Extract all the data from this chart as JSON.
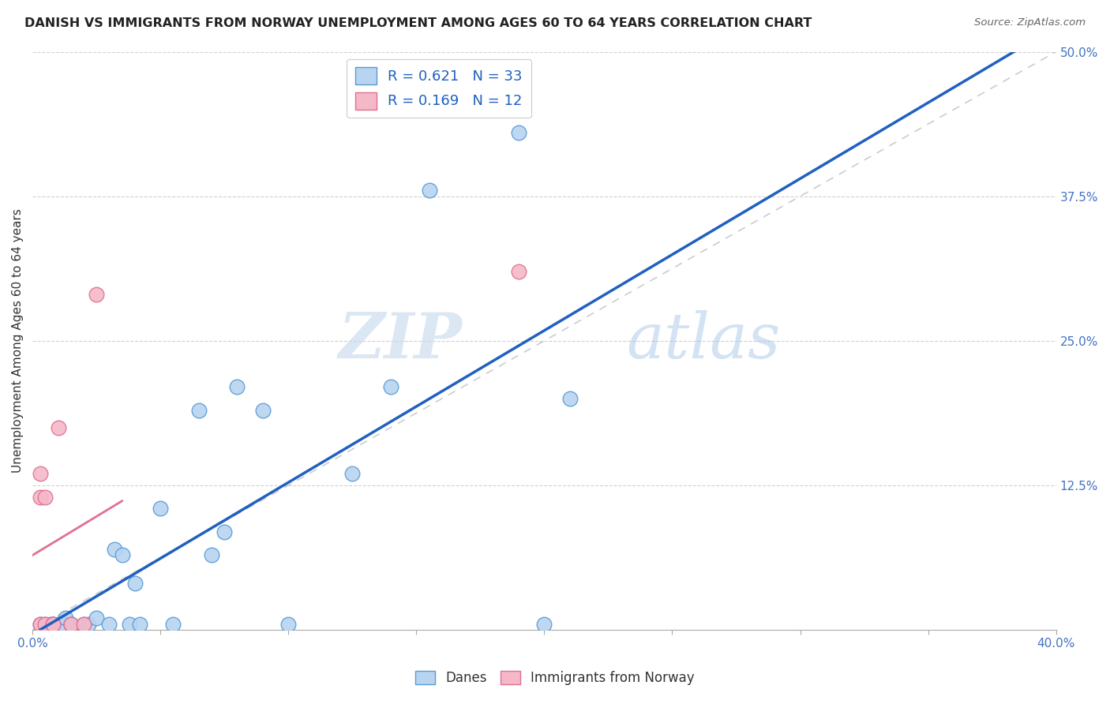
{
  "title": "DANISH VS IMMIGRANTS FROM NORWAY UNEMPLOYMENT AMONG AGES 60 TO 64 YEARS CORRELATION CHART",
  "source": "Source: ZipAtlas.com",
  "ylabel": "Unemployment Among Ages 60 to 64 years",
  "legend_bottom_danes": "Danes",
  "legend_bottom_norway": "Immigrants from Norway",
  "xlim": [
    0.0,
    0.4
  ],
  "ylim": [
    0.0,
    0.5
  ],
  "xtick_vals": [
    0.0,
    0.4
  ],
  "xtick_labels": [
    "0.0%",
    "40.0%"
  ],
  "ytick_vals": [
    0.0,
    0.125,
    0.25,
    0.375,
    0.5
  ],
  "ytick_labels": [
    "",
    "12.5%",
    "25.0%",
    "37.5%",
    "50.0%"
  ],
  "danes_color": "#b8d4f0",
  "danes_edge_color": "#5b9bd5",
  "norway_color": "#f4b8c8",
  "norway_edge_color": "#e07090",
  "line_blue_color": "#2060c0",
  "line_pink_color": "#e07090",
  "line_gray_color": "#cccccc",
  "R_danes": 0.621,
  "N_danes": 33,
  "R_norway": 0.169,
  "N_norway": 12,
  "danes_x": [
    0.003,
    0.005,
    0.007,
    0.008,
    0.008,
    0.01,
    0.012,
    0.013,
    0.015,
    0.015,
    0.02,
    0.022,
    0.025,
    0.03,
    0.032,
    0.035,
    0.038,
    0.04,
    0.042,
    0.05,
    0.055,
    0.065,
    0.07,
    0.075,
    0.08,
    0.09,
    0.1,
    0.125,
    0.14,
    0.155,
    0.19,
    0.2,
    0.21
  ],
  "danes_y": [
    0.005,
    0.005,
    0.005,
    0.005,
    0.005,
    0.005,
    0.005,
    0.01,
    0.005,
    0.005,
    0.005,
    0.005,
    0.01,
    0.005,
    0.07,
    0.065,
    0.005,
    0.04,
    0.005,
    0.105,
    0.005,
    0.19,
    0.065,
    0.085,
    0.21,
    0.19,
    0.005,
    0.135,
    0.21,
    0.38,
    0.43,
    0.005,
    0.2
  ],
  "norway_x": [
    0.003,
    0.003,
    0.003,
    0.005,
    0.005,
    0.008,
    0.008,
    0.01,
    0.015,
    0.02,
    0.025,
    0.19
  ],
  "norway_y": [
    0.005,
    0.135,
    0.115,
    0.005,
    0.115,
    0.005,
    0.005,
    0.175,
    0.005,
    0.005,
    0.29,
    0.31
  ],
  "watermark_zip": "ZIP",
  "watermark_atlas": "atlas",
  "background_color": "#ffffff",
  "grid_color": "#d0d0d0",
  "grid_linestyle": "--",
  "marker_size": 180
}
